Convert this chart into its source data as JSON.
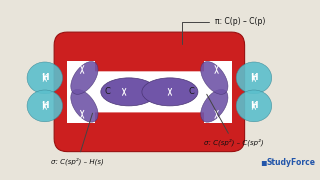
{
  "bg_color": "#e8e4da",
  "pi_bond_color": "#cc1f1f",
  "pi_bond_edge": "#991010",
  "sigma_color": "#7055a8",
  "sigma_edge": "#4a3575",
  "sp2_color": "#7055a8",
  "h_color_top": "#5bbfcc",
  "h_color_bot": "#4aaabb",
  "h_edge": "#3a8a99",
  "annotation_pi": "π: C(p) – C(p)",
  "annotation_sigma_cc": "σ: C(sp²) – C(sp²)",
  "annotation_sigma_ch": "σ: C(sp²) – H(s)",
  "studyforce_text": "StudyForce",
  "h_label": "H",
  "c_label": "C"
}
